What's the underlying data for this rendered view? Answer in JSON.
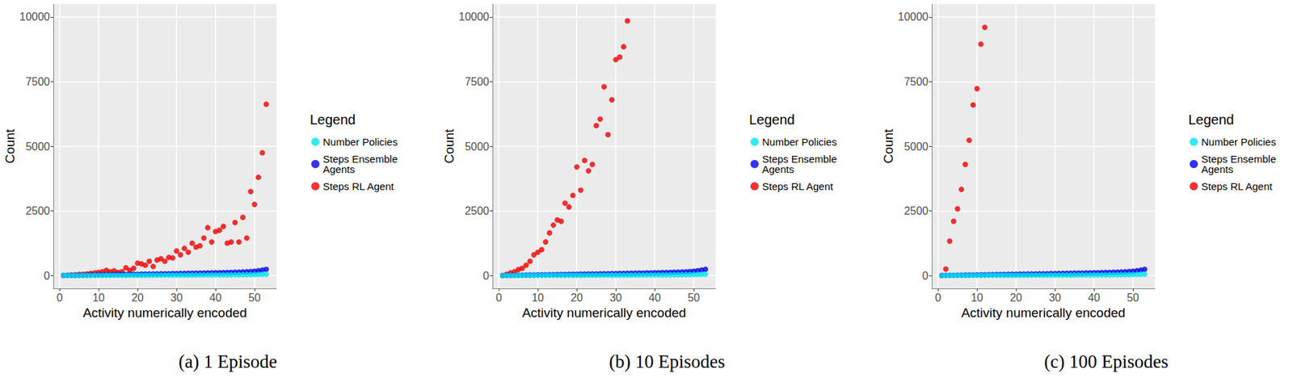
{
  "chart_data": [
    {
      "type": "scatter",
      "title": "(a) 1 Episode",
      "x_label": "Activity numerically encoded",
      "y_label": "Count",
      "legend_title": "Legend",
      "xlim": [
        -1.6,
        55.6
      ],
      "xticks": [
        0,
        10,
        20,
        30,
        40,
        50
      ],
      "ylim": [
        -500,
        10500
      ],
      "yticks": [
        0,
        2500,
        5000,
        7500,
        10000
      ],
      "grid": true,
      "series": [
        {
          "name": "Number Policies",
          "color": "#00e5ee",
          "x": [
            1,
            2,
            3,
            4,
            5,
            6,
            7,
            8,
            9,
            10,
            11,
            12,
            13,
            14,
            15,
            16,
            17,
            18,
            19,
            20,
            21,
            22,
            23,
            24,
            25,
            26,
            27,
            28,
            29,
            30,
            31,
            32,
            33,
            34,
            35,
            36,
            37,
            38,
            39,
            40,
            41,
            42,
            43,
            44,
            45,
            46,
            47,
            48,
            49,
            50,
            51,
            52,
            53
          ],
          "values": [
            1,
            1,
            2,
            2,
            3,
            3,
            4,
            4,
            5,
            5,
            6,
            6,
            7,
            7,
            8,
            8,
            9,
            9,
            10,
            10,
            11,
            11,
            12,
            12,
            13,
            13,
            14,
            14,
            15,
            15,
            16,
            16,
            17,
            17,
            18,
            18,
            19,
            19,
            20,
            21,
            22,
            23,
            24,
            25,
            26,
            28,
            30,
            32,
            35,
            38,
            42,
            46,
            50
          ]
        },
        {
          "name": "Steps Ensemble Agents",
          "color": "#0000ee",
          "x": [
            1,
            2,
            3,
            4,
            5,
            6,
            7,
            8,
            9,
            10,
            11,
            12,
            13,
            14,
            15,
            16,
            17,
            18,
            19,
            20,
            21,
            22,
            23,
            24,
            25,
            26,
            27,
            28,
            29,
            30,
            31,
            32,
            33,
            34,
            35,
            36,
            37,
            38,
            39,
            40,
            41,
            42,
            43,
            44,
            45,
            46,
            47,
            48,
            49,
            50,
            51,
            52,
            53
          ],
          "values": [
            2,
            5,
            8,
            10,
            13,
            15,
            18,
            20,
            22,
            25,
            28,
            30,
            33,
            35,
            38,
            40,
            43,
            45,
            48,
            50,
            53,
            55,
            58,
            60,
            63,
            65,
            68,
            70,
            73,
            76,
            79,
            82,
            85,
            88,
            91,
            94,
            97,
            100,
            103,
            106,
            110,
            114,
            118,
            122,
            127,
            132,
            138,
            145,
            155,
            168,
            185,
            210,
            240
          ]
        },
        {
          "name": "Steps RL Agent",
          "color": "#ee0000",
          "x": [
            1,
            2,
            3,
            4,
            5,
            6,
            7,
            8,
            9,
            10,
            11,
            12,
            13,
            14,
            15,
            16,
            17,
            18,
            19,
            20,
            21,
            22,
            23,
            24,
            25,
            26,
            27,
            28,
            29,
            30,
            31,
            32,
            33,
            34,
            35,
            36,
            37,
            38,
            39,
            40,
            41,
            42,
            43,
            44,
            45,
            46,
            47,
            48,
            49,
            50,
            51,
            52,
            53
          ],
          "values": [
            0,
            10,
            20,
            30,
            40,
            50,
            60,
            80,
            100,
            120,
            150,
            200,
            150,
            180,
            120,
            150,
            300,
            200,
            280,
            480,
            450,
            400,
            550,
            350,
            600,
            650,
            550,
            700,
            680,
            950,
            800,
            1050,
            900,
            1250,
            1100,
            1150,
            1450,
            1850,
            1300,
            1700,
            1750,
            1900,
            1250,
            1300,
            2050,
            1300,
            2250,
            1450,
            3250,
            2750,
            3800,
            4750,
            6625
          ]
        }
      ]
    },
    {
      "type": "scatter",
      "title": "(b) 10 Episodes",
      "x_label": "Activity numerically encoded",
      "y_label": "Count",
      "legend_title": "Legend",
      "xlim": [
        -1.6,
        55.6
      ],
      "xticks": [
        0,
        10,
        20,
        30,
        40,
        50
      ],
      "ylim": [
        -500,
        10500
      ],
      "yticks": [
        0,
        2500,
        5000,
        7500,
        10000
      ],
      "grid": true,
      "series": [
        {
          "name": "Number Policies",
          "color": "#00e5ee",
          "x": [
            1,
            2,
            3,
            4,
            5,
            6,
            7,
            8,
            9,
            10,
            11,
            12,
            13,
            14,
            15,
            16,
            17,
            18,
            19,
            20,
            21,
            22,
            23,
            24,
            25,
            26,
            27,
            28,
            29,
            30,
            31,
            32,
            33,
            34,
            35,
            36,
            37,
            38,
            39,
            40,
            41,
            42,
            43,
            44,
            45,
            46,
            47,
            48,
            49,
            50,
            51,
            52,
            53
          ],
          "values": [
            1,
            1,
            2,
            2,
            3,
            3,
            4,
            4,
            5,
            5,
            6,
            6,
            7,
            7,
            8,
            8,
            9,
            9,
            10,
            10,
            11,
            11,
            12,
            12,
            13,
            13,
            14,
            14,
            15,
            15,
            16,
            16,
            17,
            17,
            18,
            18,
            19,
            19,
            20,
            21,
            22,
            23,
            24,
            25,
            26,
            28,
            30,
            32,
            35,
            38,
            42,
            46,
            50
          ]
        },
        {
          "name": "Steps Ensemble Agents",
          "color": "#0000ee",
          "x": [
            1,
            2,
            3,
            4,
            5,
            6,
            7,
            8,
            9,
            10,
            11,
            12,
            13,
            14,
            15,
            16,
            17,
            18,
            19,
            20,
            21,
            22,
            23,
            24,
            25,
            26,
            27,
            28,
            29,
            30,
            31,
            32,
            33,
            34,
            35,
            36,
            37,
            38,
            39,
            40,
            41,
            42,
            43,
            44,
            45,
            46,
            47,
            48,
            49,
            50,
            51,
            52,
            53
          ],
          "values": [
            2,
            5,
            8,
            10,
            13,
            15,
            18,
            20,
            22,
            25,
            28,
            30,
            33,
            35,
            38,
            40,
            43,
            45,
            48,
            50,
            53,
            55,
            58,
            60,
            63,
            65,
            68,
            70,
            73,
            76,
            79,
            82,
            85,
            88,
            91,
            94,
            97,
            100,
            103,
            106,
            110,
            114,
            118,
            122,
            127,
            132,
            138,
            145,
            155,
            168,
            185,
            210,
            240
          ]
        },
        {
          "name": "Steps RL Agent",
          "color": "#ee0000",
          "x": [
            1,
            2,
            3,
            4,
            5,
            6,
            7,
            8,
            9,
            10,
            11,
            12,
            13,
            14,
            15,
            16,
            17,
            18,
            19,
            20,
            21,
            22,
            23,
            24,
            25,
            26,
            27,
            28,
            29,
            30,
            31,
            32,
            33
          ],
          "values": [
            0,
            50,
            100,
            150,
            230,
            280,
            400,
            550,
            800,
            900,
            1000,
            1300,
            1650,
            1950,
            2150,
            2100,
            2800,
            2650,
            3100,
            4200,
            3300,
            4450,
            4050,
            4300,
            5800,
            6050,
            7300,
            5450,
            6800,
            8350,
            8450,
            8850,
            9850
          ]
        }
      ]
    },
    {
      "type": "scatter",
      "title": "(c) 100 Episodes",
      "x_label": "Activity numerically encoded",
      "y_label": "Count",
      "legend_title": "Legend",
      "xlim": [
        -1.6,
        55.6
      ],
      "xticks": [
        0,
        10,
        20,
        30,
        40,
        50
      ],
      "ylim": [
        -500,
        10500
      ],
      "yticks": [
        0,
        2500,
        5000,
        7500,
        10000
      ],
      "grid": true,
      "series": [
        {
          "name": "Number Policies",
          "color": "#00e5ee",
          "x": [
            1,
            2,
            3,
            4,
            5,
            6,
            7,
            8,
            9,
            10,
            11,
            12,
            13,
            14,
            15,
            16,
            17,
            18,
            19,
            20,
            21,
            22,
            23,
            24,
            25,
            26,
            27,
            28,
            29,
            30,
            31,
            32,
            33,
            34,
            35,
            36,
            37,
            38,
            39,
            40,
            41,
            42,
            43,
            44,
            45,
            46,
            47,
            48,
            49,
            50,
            51,
            52,
            53
          ],
          "values": [
            1,
            1,
            2,
            2,
            3,
            3,
            4,
            4,
            5,
            5,
            6,
            6,
            7,
            7,
            8,
            8,
            9,
            9,
            10,
            10,
            11,
            11,
            12,
            12,
            13,
            13,
            14,
            14,
            15,
            15,
            16,
            16,
            17,
            17,
            18,
            18,
            19,
            19,
            20,
            21,
            22,
            23,
            24,
            25,
            26,
            28,
            30,
            32,
            35,
            38,
            42,
            46,
            50
          ]
        },
        {
          "name": "Steps Ensemble Agents",
          "color": "#0000ee",
          "x": [
            1,
            2,
            3,
            4,
            5,
            6,
            7,
            8,
            9,
            10,
            11,
            12,
            13,
            14,
            15,
            16,
            17,
            18,
            19,
            20,
            21,
            22,
            23,
            24,
            25,
            26,
            27,
            28,
            29,
            30,
            31,
            32,
            33,
            34,
            35,
            36,
            37,
            38,
            39,
            40,
            41,
            42,
            43,
            44,
            45,
            46,
            47,
            48,
            49,
            50,
            51,
            52,
            53
          ],
          "values": [
            2,
            5,
            8,
            10,
            13,
            15,
            18,
            20,
            22,
            25,
            28,
            30,
            33,
            35,
            38,
            40,
            43,
            45,
            48,
            50,
            53,
            55,
            58,
            60,
            63,
            65,
            68,
            70,
            73,
            76,
            79,
            82,
            85,
            88,
            91,
            94,
            97,
            100,
            103,
            106,
            110,
            114,
            118,
            122,
            127,
            132,
            138,
            145,
            155,
            168,
            185,
            210,
            240
          ]
        },
        {
          "name": "Steps RL Agent",
          "color": "#ee0000",
          "x": [
            1,
            2,
            3,
            4,
            5,
            6,
            7,
            8,
            9,
            10,
            11,
            12
          ],
          "values": [
            0,
            250,
            1330,
            2100,
            2580,
            3330,
            4300,
            5230,
            6600,
            7230,
            8950,
            9600
          ]
        }
      ]
    }
  ]
}
